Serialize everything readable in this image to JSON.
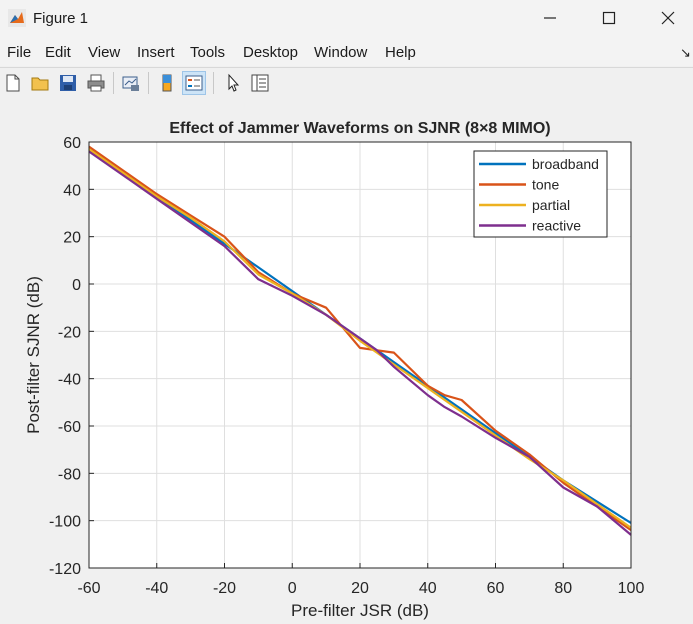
{
  "window": {
    "title": "Figure 1"
  },
  "menu": [
    "File",
    "Edit",
    "View",
    "Insert",
    "Tools",
    "Desktop",
    "Window",
    "Help"
  ],
  "toolbar": [
    "new-figure",
    "open-file",
    "save",
    "print",
    "link-plot",
    "insert-colorbar",
    "insert-legend",
    "edit-plot",
    "property-inspector"
  ],
  "chart_data": {
    "type": "line",
    "title": "Effect of Jammer Waveforms on SJNR (8×8 MIMO)",
    "xlabel": "Pre-filter JSR (dB)",
    "ylabel": "Post-filter SJNR (dB)",
    "xlim": [
      -60,
      100
    ],
    "ylim": [
      -120,
      60
    ],
    "xticks": [
      -60,
      -40,
      -20,
      0,
      20,
      40,
      60,
      80,
      100
    ],
    "yticks": [
      60,
      40,
      20,
      0,
      -20,
      -40,
      -60,
      -80,
      -100,
      -120
    ],
    "grid": true,
    "legend": "top-right",
    "x": [
      -60,
      -50,
      -40,
      -30,
      -20,
      -10,
      0,
      10,
      20,
      25,
      30,
      40,
      45,
      50,
      60,
      70,
      80,
      90,
      100
    ],
    "series": [
      {
        "name": "broadband",
        "color": "#0072BD",
        "values": [
          57,
          47,
          37,
          27,
          17,
          7,
          -3,
          -13,
          -23,
          -28,
          -33,
          -43,
          -48,
          -53,
          -63,
          -73,
          -83,
          -92,
          -101
        ]
      },
      {
        "name": "tone",
        "color": "#D95319",
        "values": [
          58,
          48,
          38,
          29,
          20,
          5,
          -4,
          -10,
          -27,
          -28,
          -29,
          -43,
          -47,
          -49,
          -62,
          -72,
          -84,
          -94,
          -104
        ]
      },
      {
        "name": "partial",
        "color": "#EDB120",
        "values": [
          57,
          47,
          37,
          28,
          18,
          4,
          -4,
          -13,
          -24,
          -29,
          -34,
          -44,
          -49,
          -54,
          -64,
          -74,
          -83,
          -93,
          -103
        ]
      },
      {
        "name": "reactive",
        "color": "#7E2F8E",
        "values": [
          56,
          46,
          36,
          26,
          16,
          2,
          -5,
          -13,
          -23,
          -28,
          -35,
          -47,
          -52,
          -56,
          -65,
          -73,
          -86,
          -94,
          -106
        ]
      }
    ]
  }
}
